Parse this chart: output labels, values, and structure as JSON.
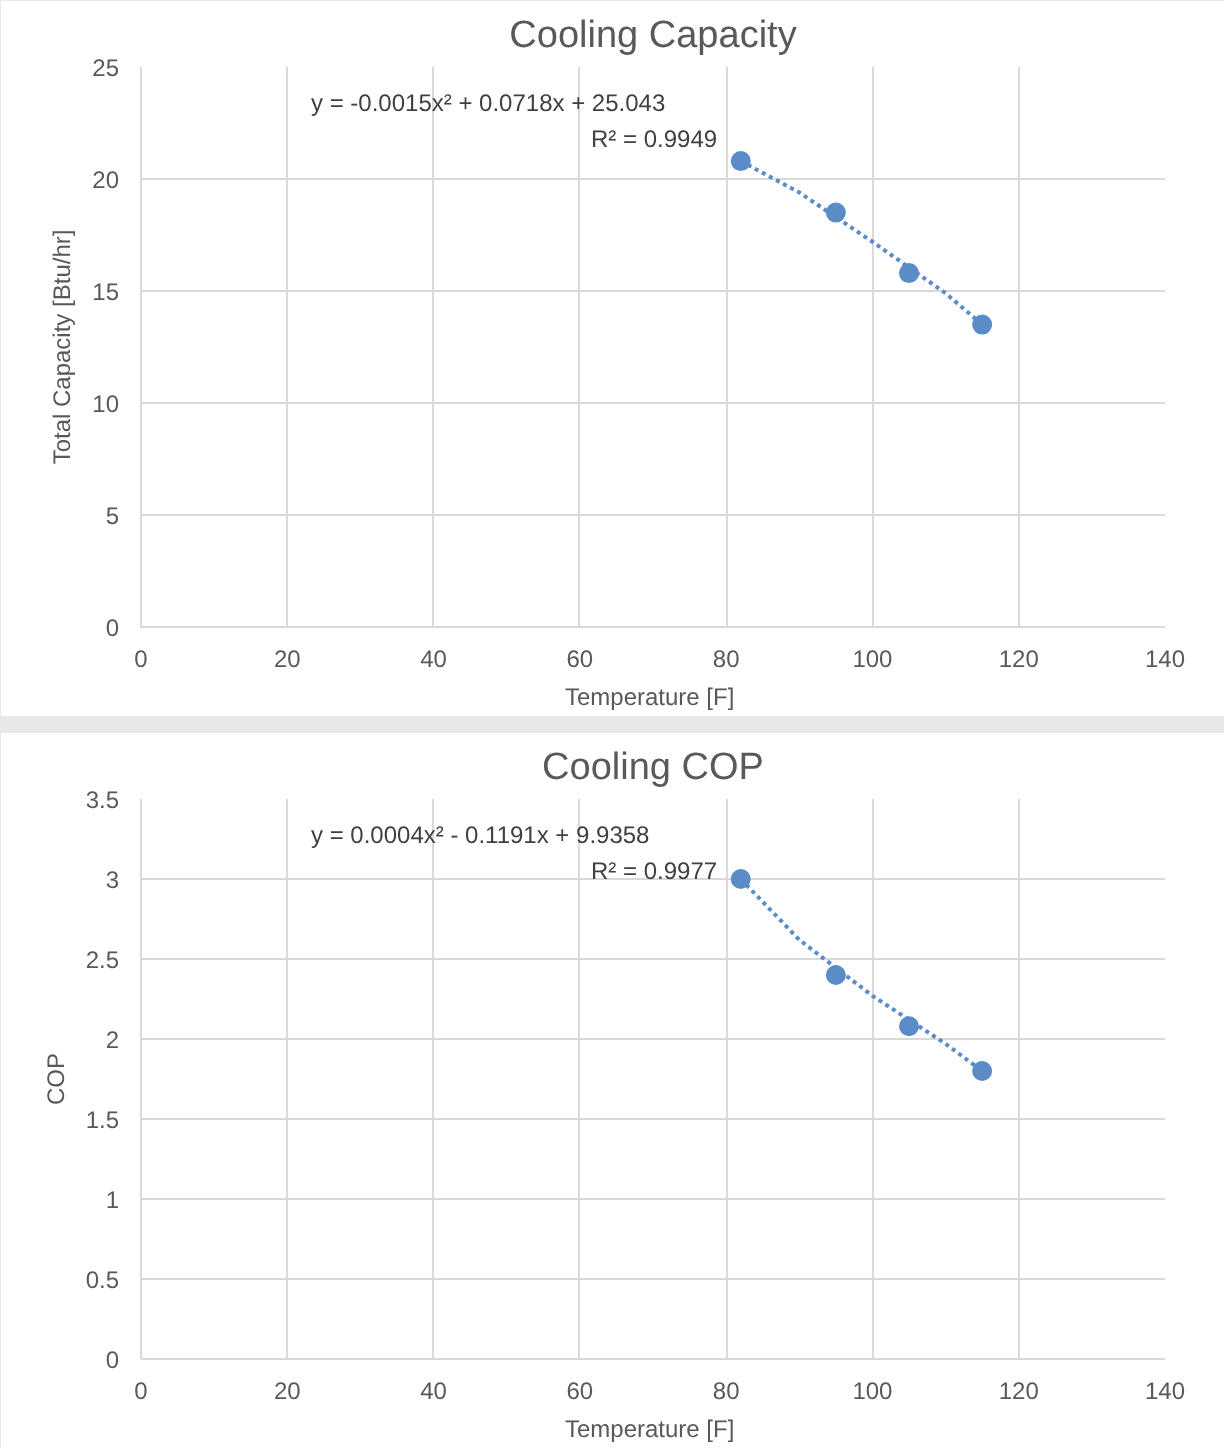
{
  "chart_data": [
    {
      "type": "scatter",
      "title": "Cooling Capacity",
      "xlabel": "Temperature  [F]",
      "ylabel": "Total Capacity [Btu/hr]",
      "xlim": [
        0,
        140
      ],
      "xticks": [
        0,
        20,
        40,
        60,
        80,
        100,
        120,
        140
      ],
      "ylim": [
        0,
        25
      ],
      "yticks": [
        0,
        5,
        10,
        15,
        20,
        25
      ],
      "grid": true,
      "marker": "circle",
      "annotations": [
        "y = -0.0015x² + 0.0718x + 25.043",
        "R² = 0.9949"
      ],
      "series": [
        {
          "color": "#5b8cc8",
          "x": [
            82,
            95,
            105,
            115
          ],
          "values": [
            20.8,
            18.5,
            15.8,
            13.5
          ]
        },
        {
          "type": "line",
          "line_style": "dotted",
          "marker": "none",
          "color": "#5b8cc8",
          "x": [
            82,
            90,
            100,
            110,
            115
          ],
          "values": [
            20.8,
            19.4,
            17.2,
            14.9,
            13.5
          ]
        }
      ]
    },
    {
      "type": "scatter",
      "title": "Cooling COP",
      "xlabel": "Temperature  [F]",
      "ylabel": "COP",
      "xlim": [
        0,
        140
      ],
      "xticks": [
        0,
        20,
        40,
        60,
        80,
        100,
        120,
        140
      ],
      "ylim": [
        0,
        3.5
      ],
      "yticks": [
        0,
        0.5,
        1,
        1.5,
        2,
        2.5,
        3,
        3.5
      ],
      "grid": true,
      "marker": "circle",
      "annotations": [
        "y = 0.0004x² - 0.1191x + 9.9358",
        "R² = 0.9977"
      ],
      "series": [
        {
          "color": "#5b8cc8",
          "x": [
            82,
            95,
            105,
            115
          ],
          "values": [
            3.0,
            2.4,
            2.08,
            1.8
          ]
        },
        {
          "type": "line",
          "line_style": "dotted",
          "marker": "none",
          "color": "#5b8cc8",
          "x": [
            82,
            90,
            100,
            110,
            115
          ],
          "values": [
            3.0,
            2.62,
            2.27,
            1.97,
            1.8
          ]
        }
      ]
    }
  ]
}
